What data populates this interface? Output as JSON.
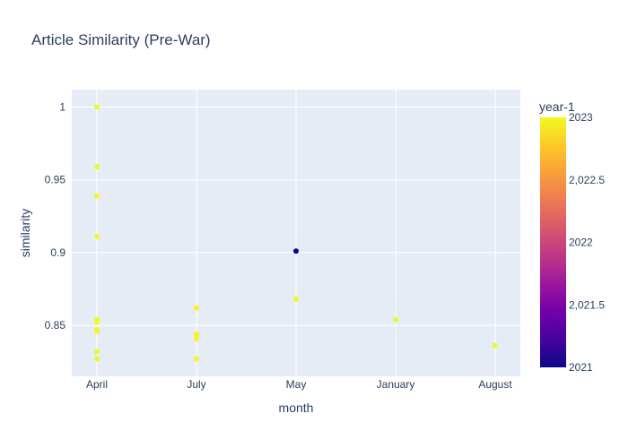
{
  "chart_data": {
    "type": "scatter",
    "title": "Article Similarity (Pre-War)",
    "xlabel": "month",
    "ylabel": "similarity",
    "categories": [
      "April",
      "July",
      "May",
      "January",
      "August"
    ],
    "ylim": [
      0.815,
      1.012
    ],
    "y_ticks": [
      0.85,
      0.9,
      0.95,
      1
    ],
    "y_tick_labels": [
      "0.85",
      "0.9",
      "0.95",
      "1"
    ],
    "grid": true,
    "colorbar": {
      "title": "year-1",
      "range": [
        2021,
        2023
      ],
      "ticks": [
        2021,
        2021.5,
        2022,
        2022.5,
        2023
      ],
      "tick_labels": [
        "2021",
        "2,021.5",
        "2022",
        "2,022.5",
        "2023"
      ],
      "colorscale": [
        "#0d0887",
        "#46039f",
        "#7201a8",
        "#9c179e",
        "#bd3786",
        "#d8576b",
        "#ed7953",
        "#fb9f3a",
        "#fdca26",
        "#f0f921"
      ]
    },
    "points": [
      {
        "x": "April",
        "y": 1.0,
        "color_value": 2023
      },
      {
        "x": "April",
        "y": 0.959,
        "color_value": 2023
      },
      {
        "x": "April",
        "y": 0.939,
        "color_value": 2023
      },
      {
        "x": "April",
        "y": 0.911,
        "color_value": 2023
      },
      {
        "x": "April",
        "y": 0.854,
        "color_value": 2023
      },
      {
        "x": "April",
        "y": 0.852,
        "color_value": 2023
      },
      {
        "x": "April",
        "y": 0.847,
        "color_value": 2023
      },
      {
        "x": "April",
        "y": 0.846,
        "color_value": 2023
      },
      {
        "x": "April",
        "y": 0.832,
        "color_value": 2023
      },
      {
        "x": "April",
        "y": 0.827,
        "color_value": 2023
      },
      {
        "x": "July",
        "y": 0.862,
        "color_value": 2023
      },
      {
        "x": "July",
        "y": 0.844,
        "color_value": 2023
      },
      {
        "x": "July",
        "y": 0.843,
        "color_value": 2023
      },
      {
        "x": "July",
        "y": 0.841,
        "color_value": 2023
      },
      {
        "x": "July",
        "y": 0.827,
        "color_value": 2023
      },
      {
        "x": "May",
        "y": 0.901,
        "color_value": 2021
      },
      {
        "x": "May",
        "y": 0.868,
        "color_value": 2023
      },
      {
        "x": "January",
        "y": 0.854,
        "color_value": 2023
      },
      {
        "x": "August",
        "y": 0.836,
        "color_value": 2023
      }
    ]
  }
}
